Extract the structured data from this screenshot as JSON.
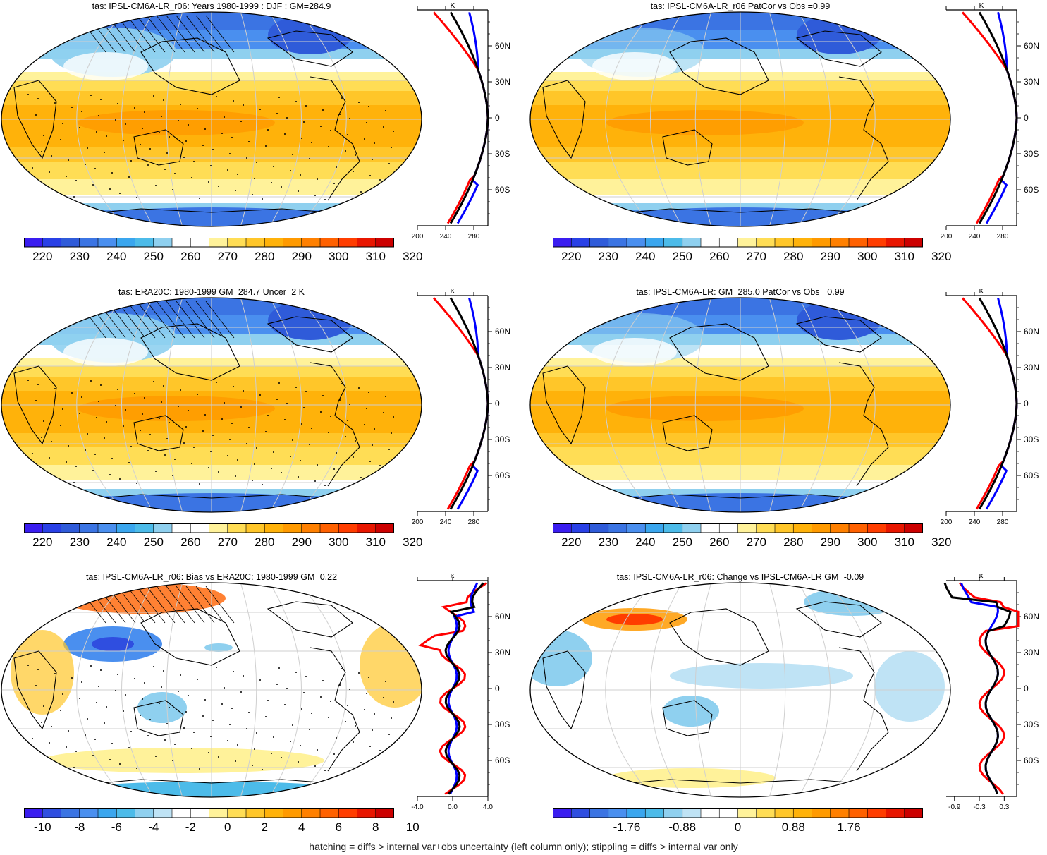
{
  "footnote": "hatching = diffs > internal var+obs uncertainty (left column only); stippling = diffs > internal var only",
  "colors": {
    "abs_scale": [
      "#3a1df0",
      "#2940e6",
      "#2f5bd9",
      "#3b74e3",
      "#4a8fef",
      "#3aa6ee",
      "#4cbbe9",
      "#8fd0ef",
      "#ffffff",
      "#ffffff",
      "#fff29a",
      "#ffdd55",
      "#ffc629",
      "#ffb20a",
      "#ff9a00",
      "#ff8000",
      "#ff6100",
      "#ff3d00",
      "#e81600",
      "#cc0000"
    ],
    "diff_scale": [
      "#3a1df0",
      "#2f4ee0",
      "#3b74e3",
      "#4a8fef",
      "#3aa6ee",
      "#4cbbe9",
      "#8fd0ef",
      "#bfe3f5",
      "#ffffff",
      "#ffffff",
      "#fff29a",
      "#ffdd55",
      "#ffc629",
      "#ffb20a",
      "#ff9a00",
      "#ff8000",
      "#ff6100",
      "#ff3d00",
      "#e81600",
      "#cc0000"
    ],
    "model_line": "#000000",
    "obs_line": "#ff0000",
    "third_line": "#0000ff"
  },
  "chart_data": [
    {
      "type": "heatmap",
      "title": "tas: IPSL-CM6A-LR_r06: Years 1980-1999 : DJF : GM=284.9",
      "colorbar_labels": [
        "220",
        "230",
        "240",
        "250",
        "260",
        "270",
        "280",
        "290",
        "300",
        "310",
        "320"
      ],
      "zonal": {
        "x_ticks": [
          "200",
          "240",
          "280"
        ],
        "xlim": [
          200,
          300
        ],
        "unit": "K",
        "lat_labels": [
          "60N",
          "30N",
          "0",
          "30S",
          "60S"
        ]
      }
    },
    {
      "type": "heatmap",
      "title": "tas: IPSL-CM6A-LR_r06 PatCor vs Obs =0.99",
      "colorbar_labels": [
        "220",
        "230",
        "240",
        "250",
        "260",
        "270",
        "280",
        "290",
        "300",
        "310",
        "320"
      ],
      "zonal": {
        "x_ticks": [
          "200",
          "240",
          "280"
        ],
        "xlim": [
          200,
          300
        ],
        "unit": "K",
        "lat_labels": [
          "60N",
          "30N",
          "0",
          "30S",
          "60S"
        ]
      }
    },
    {
      "type": "heatmap",
      "title": "tas: ERA20C: 1980-1999 GM=284.7 Uncer=2 K",
      "colorbar_labels": [
        "220",
        "230",
        "240",
        "250",
        "260",
        "270",
        "280",
        "290",
        "300",
        "310",
        "320"
      ],
      "zonal": {
        "x_ticks": [
          "200",
          "240",
          "280"
        ],
        "xlim": [
          200,
          300
        ],
        "unit": "K",
        "lat_labels": [
          "60N",
          "30N",
          "0",
          "30S",
          "60S"
        ]
      }
    },
    {
      "type": "heatmap",
      "title": "tas: IPSL-CM6A-LR: GM=285.0 PatCor vs Obs =0.99",
      "colorbar_labels": [
        "220",
        "230",
        "240",
        "250",
        "260",
        "270",
        "280",
        "290",
        "300",
        "310",
        "320"
      ],
      "zonal": {
        "x_ticks": [
          "200",
          "240",
          "280"
        ],
        "xlim": [
          200,
          300
        ],
        "unit": "K",
        "lat_labels": [
          "60N",
          "30N",
          "0",
          "30S",
          "60S"
        ]
      }
    },
    {
      "type": "heatmap",
      "title": "tas: IPSL-CM6A-LR_r06: Bias vs ERA20C: 1980-1999 GM=0.22",
      "colorbar_labels": [
        "-10",
        "-8",
        "-6",
        "-4",
        "-2",
        "0",
        "2",
        "4",
        "6",
        "8",
        "10"
      ],
      "zonal": {
        "x_ticks": [
          "-4.0",
          "0.0",
          "4.0"
        ],
        "xlim": [
          -4,
          4
        ],
        "unit": "K",
        "lat_labels": [
          "60N",
          "30N",
          "0",
          "30S",
          "60S"
        ]
      }
    },
    {
      "type": "heatmap",
      "title": "tas: IPSL-CM6A-LR_r06: Change vs IPSL-CM6A-LR GM=-0.09",
      "colorbar_labels": [
        "-1.76",
        "-0.88",
        "0",
        "0.88",
        "1.76"
      ],
      "zonal": {
        "x_ticks": [
          "-0.9",
          "-0.3",
          "0.3"
        ],
        "xlim": [
          -1.1,
          0.6
        ],
        "unit": "K",
        "lat_labels": [
          "60N",
          "30N",
          "0",
          "30S",
          "60S"
        ]
      }
    }
  ]
}
